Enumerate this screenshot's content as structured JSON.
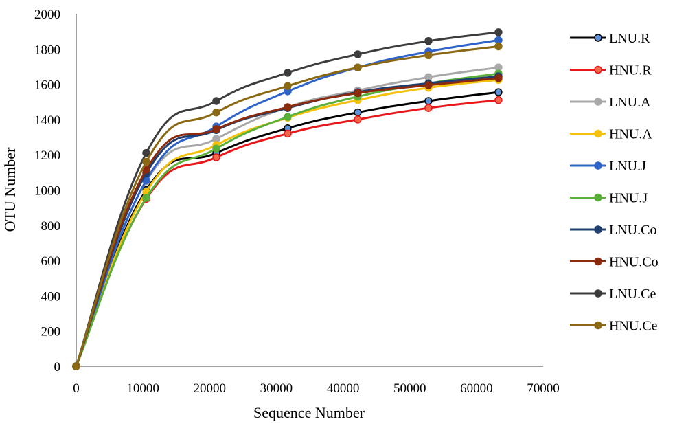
{
  "chart_data": {
    "type": "line",
    "title": "",
    "xlabel": "Sequence Number",
    "ylabel": "OTU  Number",
    "xlim": [
      0,
      70000
    ],
    "ylim": [
      0,
      2000
    ],
    "xticks": [
      0,
      10000,
      20000,
      30000,
      40000,
      50000,
      60000,
      70000
    ],
    "yticks": [
      0,
      200,
      400,
      600,
      800,
      1000,
      1200,
      1400,
      1600,
      1800,
      2000
    ],
    "x": [
      0,
      10500,
      21000,
      31700,
      42200,
      52800,
      63300
    ],
    "grid": false,
    "legend_position": "right",
    "series": [
      {
        "name": "LNU.R",
        "color": "#000000",
        "marker": "#5b8fd6",
        "values": [
          0,
          1000,
          1210,
          1350,
          1440,
          1505,
          1555
        ]
      },
      {
        "name": "HNU.R",
        "color": "#e8171b",
        "marker": "#f26a4b",
        "values": [
          0,
          950,
          1185,
          1320,
          1400,
          1465,
          1510
        ]
      },
      {
        "name": "LNU.A",
        "color": "#a8a8a8",
        "marker": "#a8a8a8",
        "values": [
          0,
          1050,
          1290,
          1470,
          1565,
          1640,
          1695
        ]
      },
      {
        "name": "HNU.A",
        "color": "#f4c20d",
        "marker": "#f4c20d",
        "values": [
          0,
          990,
          1255,
          1410,
          1510,
          1580,
          1625
        ]
      },
      {
        "name": "LNU.J",
        "color": "#2e64c8",
        "marker": "#2e64c8",
        "values": [
          0,
          1055,
          1360,
          1560,
          1695,
          1785,
          1850
        ]
      },
      {
        "name": "HNU.J",
        "color": "#5ab03a",
        "marker": "#5ab03a",
        "values": [
          0,
          955,
          1235,
          1415,
          1530,
          1605,
          1660
        ]
      },
      {
        "name": "LNU.Co",
        "color": "#1f3f6e",
        "marker": "#1f3f6e",
        "values": [
          0,
          1095,
          1340,
          1465,
          1555,
          1605,
          1645
        ]
      },
      {
        "name": "HNU.Co",
        "color": "#8b2a0c",
        "marker": "#8b2a0c",
        "values": [
          0,
          1115,
          1345,
          1470,
          1550,
          1595,
          1635
        ]
      },
      {
        "name": "LNU.Ce",
        "color": "#3d3d3d",
        "marker": "#3d3d3d",
        "values": [
          0,
          1210,
          1505,
          1665,
          1770,
          1845,
          1895
        ]
      },
      {
        "name": "HNU.Ce",
        "color": "#8b6914",
        "marker": "#8b6914",
        "values": [
          0,
          1160,
          1440,
          1590,
          1695,
          1765,
          1815
        ]
      }
    ]
  }
}
